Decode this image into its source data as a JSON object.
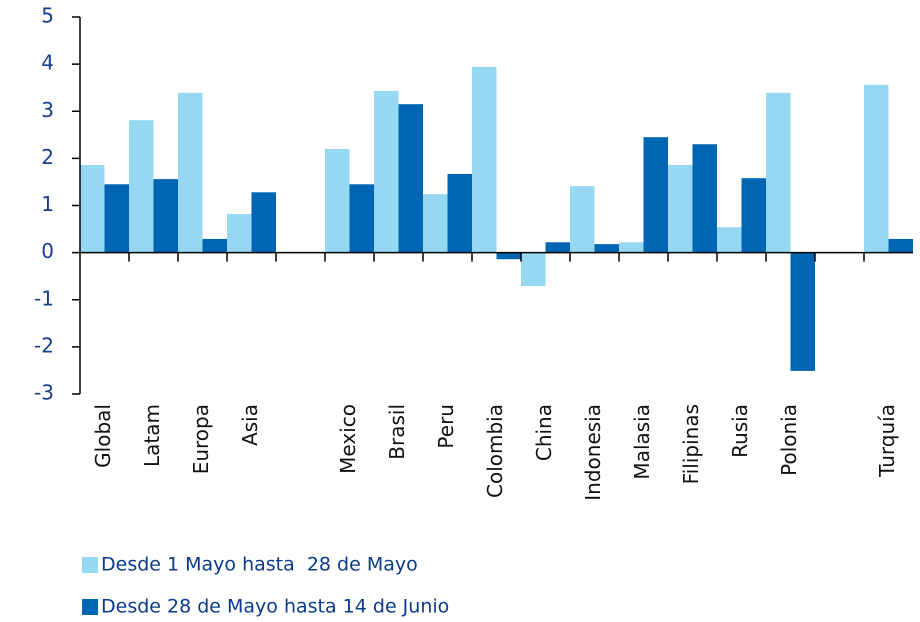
{
  "chart_data": {
    "type": "bar",
    "categories": [
      "Global",
      "Latam",
      "Europa",
      "Asia",
      null,
      "Mexico",
      "Brasil",
      "Peru",
      "Colombia",
      "China",
      "Indonesia",
      "Malasia",
      "Filipinas",
      "Rusia",
      "Polonia",
      null,
      "Turquía"
    ],
    "series": [
      {
        "name": "Desde 1 Mayo hasta  28 de Mayo",
        "color": "#96d8f2",
        "values": [
          1.86,
          2.81,
          3.39,
          0.82,
          null,
          2.2,
          3.43,
          1.24,
          3.94,
          -0.71,
          1.41,
          0.22,
          1.86,
          0.54,
          3.39,
          null,
          3.56
        ]
      },
      {
        "name": "Desde 28 de Mayo hasta 14 de Junio",
        "color": "#0066b3",
        "values": [
          1.45,
          1.56,
          0.29,
          1.28,
          null,
          1.45,
          3.15,
          1.67,
          -0.14,
          0.22,
          0.18,
          2.45,
          2.3,
          1.58,
          -2.51,
          null,
          0.29
        ]
      }
    ],
    "ylim": [
      -3,
      5
    ],
    "yticks": [
      -3,
      -2,
      -1,
      0,
      1,
      2,
      3,
      4,
      5
    ],
    "legend": "bottom"
  }
}
